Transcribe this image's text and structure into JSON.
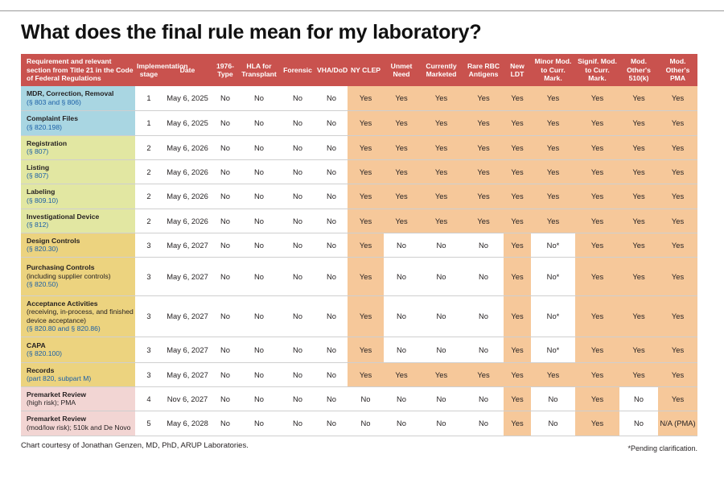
{
  "title": "What does the final rule mean for my laboratory?",
  "colors": {
    "header": "#c9524e",
    "positive_cell": "#f6c89a",
    "blue": "#a9d6e2",
    "green": "#e2e7a2",
    "gold": "#ecd37f",
    "pink": "#f2d5d3"
  },
  "headers": {
    "requirement": "Requirement and relevant section from Title 21 in the Code of Federal Regulations",
    "stage": "Implementation stage",
    "date": "Date",
    "cols": [
      "1976-Type",
      "HLA for Transplant",
      "Forensic",
      "VHA/DoD",
      "NY CLEP",
      "Unmet Need",
      "Currently Marketed",
      "Rare RBC Antigens",
      "New LDT",
      "Minor Mod. to Curr. Mark.",
      "Signif. Mod. to Curr. Mark.",
      "Mod. Other's 510(k)",
      "Mod. Other's PMA"
    ]
  },
  "rows": [
    {
      "title": "MDR, Correction, Removal",
      "note": "",
      "cite": "(§ 803 and § 806)",
      "group": "blue",
      "stage": "1",
      "date": "May 6, 2025",
      "values": [
        "No",
        "No",
        "No",
        "No",
        "Yes",
        "Yes",
        "Yes",
        "Yes",
        "Yes",
        "Yes",
        "Yes",
        "Yes",
        "Yes"
      ]
    },
    {
      "title": "Complaint Files",
      "note": "",
      "cite": "(§ 820.198)",
      "group": "blue",
      "stage": "1",
      "date": "May 6, 2025",
      "values": [
        "No",
        "No",
        "No",
        "No",
        "Yes",
        "Yes",
        "Yes",
        "Yes",
        "Yes",
        "Yes",
        "Yes",
        "Yes",
        "Yes"
      ]
    },
    {
      "title": "Registration",
      "note": "",
      "cite": "(§ 807)",
      "group": "green",
      "stage": "2",
      "date": "May 6, 2026",
      "values": [
        "No",
        "No",
        "No",
        "No",
        "Yes",
        "Yes",
        "Yes",
        "Yes",
        "Yes",
        "Yes",
        "Yes",
        "Yes",
        "Yes"
      ]
    },
    {
      "title": "Listing",
      "note": "",
      "cite": "(§ 807)",
      "group": "green",
      "stage": "2",
      "date": "May 6, 2026",
      "values": [
        "No",
        "No",
        "No",
        "No",
        "Yes",
        "Yes",
        "Yes",
        "Yes",
        "Yes",
        "Yes",
        "Yes",
        "Yes",
        "Yes"
      ]
    },
    {
      "title": "Labeling",
      "note": "",
      "cite": "(§ 809.10)",
      "group": "green",
      "stage": "2",
      "date": "May 6, 2026",
      "values": [
        "No",
        "No",
        "No",
        "No",
        "Yes",
        "Yes",
        "Yes",
        "Yes",
        "Yes",
        "Yes",
        "Yes",
        "Yes",
        "Yes"
      ]
    },
    {
      "title": "Investigational Device",
      "note": "",
      "cite": "(§ 812)",
      "group": "green",
      "stage": "2",
      "date": "May 6, 2026",
      "values": [
        "No",
        "No",
        "No",
        "No",
        "Yes",
        "Yes",
        "Yes",
        "Yes",
        "Yes",
        "Yes",
        "Yes",
        "Yes",
        "Yes"
      ]
    },
    {
      "title": "Design Controls",
      "note": "",
      "cite": "(§ 820.30)",
      "group": "gold",
      "stage": "3",
      "date": "May 6, 2027",
      "values": [
        "No",
        "No",
        "No",
        "No",
        "Yes",
        "No",
        "No",
        "No",
        "Yes",
        "No*",
        "Yes",
        "Yes",
        "Yes"
      ]
    },
    {
      "title": "Purchasing Controls",
      "note": "(including supplier controls)",
      "cite": "(§ 820.50)",
      "group": "gold",
      "stage": "3",
      "date": "May 6, 2027",
      "values": [
        "No",
        "No",
        "No",
        "No",
        "Yes",
        "No",
        "No",
        "No",
        "Yes",
        "No*",
        "Yes",
        "Yes",
        "Yes"
      ]
    },
    {
      "title": "Acceptance Activities",
      "note": "(receiving, in-process, and finished device acceptance)",
      "cite": "(§ 820.80 and § 820.86)",
      "group": "gold",
      "stage": "3",
      "date": "May 6, 2027",
      "values": [
        "No",
        "No",
        "No",
        "No",
        "Yes",
        "No",
        "No",
        "No",
        "Yes",
        "No*",
        "Yes",
        "Yes",
        "Yes"
      ]
    },
    {
      "title": "CAPA",
      "note": "",
      "cite": "(§ 820.100)",
      "group": "gold",
      "stage": "3",
      "date": "May 6, 2027",
      "values": [
        "No",
        "No",
        "No",
        "No",
        "Yes",
        "No",
        "No",
        "No",
        "Yes",
        "No*",
        "Yes",
        "Yes",
        "Yes"
      ]
    },
    {
      "title": "Records",
      "note": "",
      "cite": "(part 820, subpart M)",
      "group": "gold",
      "stage": "3",
      "date": "May 6, 2027",
      "values": [
        "No",
        "No",
        "No",
        "No",
        "Yes",
        "Yes",
        "Yes",
        "Yes",
        "Yes",
        "Yes",
        "Yes",
        "Yes",
        "Yes"
      ]
    },
    {
      "title": "Premarket Review",
      "note": "(high risk); PMA",
      "cite": "",
      "group": "pink",
      "stage": "4",
      "date": "Nov 6, 2027",
      "values": [
        "No",
        "No",
        "No",
        "No",
        "No",
        "No",
        "No",
        "No",
        "Yes",
        "No",
        "Yes",
        "No",
        "Yes"
      ]
    },
    {
      "title": "Premarket Review",
      "note": "(mod/low risk); 510k and De Novo",
      "cite": "",
      "group": "pink",
      "stage": "5",
      "date": "May 6, 2028",
      "values": [
        "No",
        "No",
        "No",
        "No",
        "No",
        "No",
        "No",
        "No",
        "Yes",
        "No",
        "Yes",
        "No",
        "N/A (PMA)"
      ]
    }
  ],
  "footer": {
    "credit": "Chart courtesy of Jonathan Genzen, MD, PhD, ARUP Laboratories.",
    "note": "*Pending clarification."
  }
}
